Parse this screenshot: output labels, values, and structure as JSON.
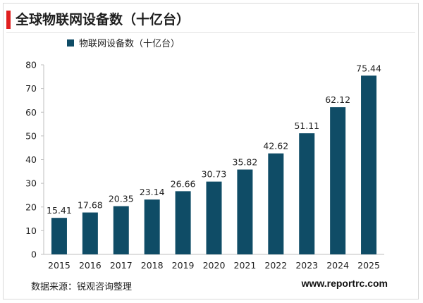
{
  "title": "全球物联网设备数（十亿台）",
  "source": "数据来源：锐观咨询整理",
  "website": "www.reportrc.com",
  "colors": {
    "bar": "#0f4c66",
    "accent": "#e01e1e"
  },
  "chart_data": {
    "type": "bar",
    "title": "全球物联网设备数（十亿台）",
    "categories": [
      "2015",
      "2016",
      "2017",
      "2018",
      "2019",
      "2020",
      "2021",
      "2022",
      "2023",
      "2024",
      "2025"
    ],
    "series": [
      {
        "name": "物联网设备数（十亿台）",
        "values": [
          15.41,
          17.68,
          20.35,
          23.14,
          26.66,
          30.73,
          35.82,
          42.62,
          51.11,
          62.12,
          75.44
        ]
      }
    ],
    "data_labels": [
      "15.41",
      "17.68",
      "20.35",
      "23.14",
      "26.66",
      "30.73",
      "35.82",
      "42.62",
      "51.11",
      "62.12",
      "75.44"
    ],
    "yticks": [
      "0",
      "10",
      "20",
      "30",
      "40",
      "50",
      "60",
      "70",
      "80"
    ],
    "ylim": [
      0,
      80
    ],
    "grid": false,
    "legend": "top-left"
  }
}
